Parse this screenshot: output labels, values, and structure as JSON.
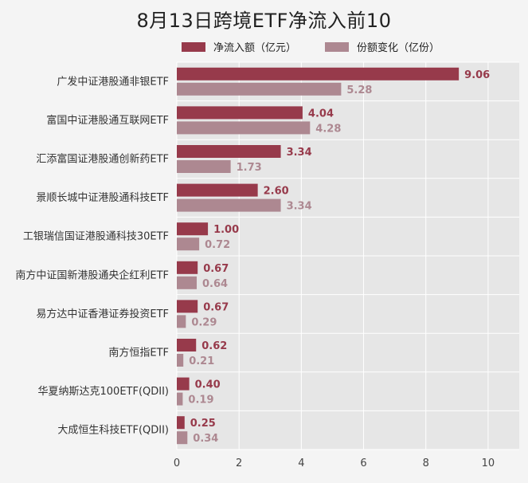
{
  "chart_data": {
    "type": "bar",
    "orientation": "horizontal",
    "title": "8月13日跨境ETF净流入前10",
    "categories": [
      "广发中证港股通非银ETF",
      "富国中证港股通互联网ETF",
      "汇添富国证港股通创新药ETF",
      "景顺长城中证港股通科技ETF",
      "工银瑞信国证港股通科技30ETF",
      "南方中证国新港股通央企红利ETF",
      "易方达中证香港证券投资ETF",
      "南方恒指ETF",
      "华夏纳斯达克100ETF(QDII)",
      "大成恒生科技ETF(QDII)"
    ],
    "series": [
      {
        "name": "净流入额（亿元）",
        "color": "#973a4b",
        "values": [
          9.06,
          4.04,
          3.34,
          2.6,
          1.0,
          0.67,
          0.67,
          0.62,
          0.4,
          0.25
        ],
        "labels": [
          "9.06",
          "4.04",
          "3.34",
          "2.60",
          "1.00",
          "0.67",
          "0.67",
          "0.62",
          "0.40",
          "0.25"
        ]
      },
      {
        "name": "份额变化（亿份）",
        "color": "#ad8891",
        "values": [
          5.28,
          4.28,
          1.73,
          3.34,
          0.72,
          0.64,
          0.29,
          0.21,
          0.19,
          0.34
        ],
        "labels": [
          "5.28",
          "4.28",
          "1.73",
          "3.34",
          "0.72",
          "0.64",
          "0.29",
          "0.21",
          "0.19",
          "0.34"
        ]
      }
    ],
    "xlim": [
      0,
      11
    ],
    "xticks": [
      "0",
      "2",
      "4",
      "6",
      "8",
      "10"
    ],
    "grid": true,
    "legend_position": "top"
  }
}
